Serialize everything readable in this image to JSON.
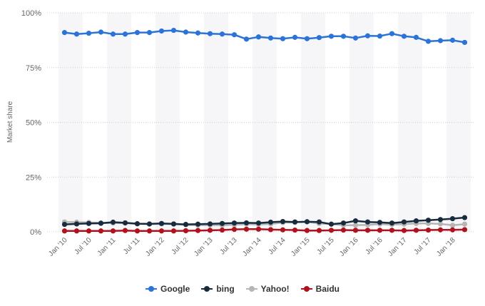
{
  "chart_data": {
    "type": "line",
    "title": "",
    "xlabel": "",
    "ylabel": "Market share",
    "ylim": [
      0,
      100
    ],
    "y_ticks": [
      "0%",
      "25%",
      "50%",
      "75%",
      "100%"
    ],
    "x_tick_labels": [
      "Jan '10",
      "Jul '10",
      "Jan '11",
      "Jul '11",
      "Jan '12",
      "Jul '12",
      "Jan '13",
      "Jul '13",
      "Jan '14",
      "Jul '14",
      "Jan '15",
      "Jul '15",
      "Jan '16",
      "Jul '16",
      "Jan '17",
      "Jul '17",
      "Jan '18"
    ],
    "x": [
      "Jan '10",
      "Apr '10",
      "Jul '10",
      "Oct '10",
      "Jan '11",
      "Apr '11",
      "Jul '11",
      "Oct '11",
      "Jan '12",
      "Apr '12",
      "Jul '12",
      "Oct '12",
      "Jan '13",
      "Apr '13",
      "Jul '13",
      "Oct '13",
      "Jan '14",
      "Apr '14",
      "Jul '14",
      "Oct '14",
      "Jan '15",
      "Apr '15",
      "Jul '15",
      "Oct '15",
      "Jan '16",
      "Apr '16",
      "Jul '16",
      "Oct '16",
      "Jan '17",
      "Apr '17",
      "Jul '17",
      "Oct '17",
      "Jan '18",
      "Apr '18"
    ],
    "grid": true,
    "legend_position": "bottom",
    "series": [
      {
        "name": "Google",
        "color": "#2b73d6",
        "values": [
          91,
          90.3,
          90.7,
          91.2,
          90.3,
          90.3,
          91,
          91,
          91.7,
          92,
          91.2,
          90.8,
          90.5,
          90.3,
          90,
          88,
          89,
          88.5,
          88.2,
          88.8,
          88.2,
          88.7,
          89.3,
          89.3,
          88.5,
          89.5,
          89.4,
          90.5,
          89.3,
          88.8,
          87,
          87.3,
          87.5,
          86.5
        ]
      },
      {
        "name": "bing",
        "color": "#172b3d",
        "values": [
          3.4,
          3.6,
          3.8,
          3.9,
          4.4,
          4.1,
          3.7,
          3.6,
          3.8,
          3.6,
          3.4,
          3.5,
          3.6,
          3.8,
          4.0,
          4.1,
          4.0,
          4.4,
          4.7,
          4.5,
          4.6,
          4.5,
          3.5,
          4.0,
          5.0,
          4.5,
          4.3,
          4.0,
          4.5,
          5.0,
          5.3,
          5.6,
          6.0,
          6.5
        ]
      },
      {
        "name": "Yahoo!",
        "color": "#b5b5b5",
        "values": [
          4.5,
          4.4,
          4.3,
          4.1,
          4.0,
          4.0,
          3.6,
          3.5,
          3.6,
          3.5,
          3.2,
          3.0,
          3.1,
          3.0,
          3.2,
          3.5,
          3.4,
          3.6,
          4.2,
          4.3,
          4.6,
          3.8,
          3.5,
          3.0,
          3.0,
          3.2,
          3.5,
          3.3,
          3.5,
          3.8,
          3.8,
          3.6,
          3.0,
          3.5
        ]
      },
      {
        "name": "Baidu",
        "color": "#b0121d",
        "values": [
          0.4,
          0.4,
          0.4,
          0.4,
          0.4,
          0.6,
          0.4,
          0.4,
          0.4,
          0.4,
          0.5,
          0.6,
          0.7,
          0.8,
          1.1,
          1.2,
          1.2,
          1.0,
          0.9,
          0.8,
          0.6,
          0.6,
          0.7,
          0.8,
          0.7,
          0.7,
          0.7,
          0.7,
          0.6,
          0.7,
          0.8,
          0.9,
          0.9,
          1.0
        ]
      }
    ]
  }
}
